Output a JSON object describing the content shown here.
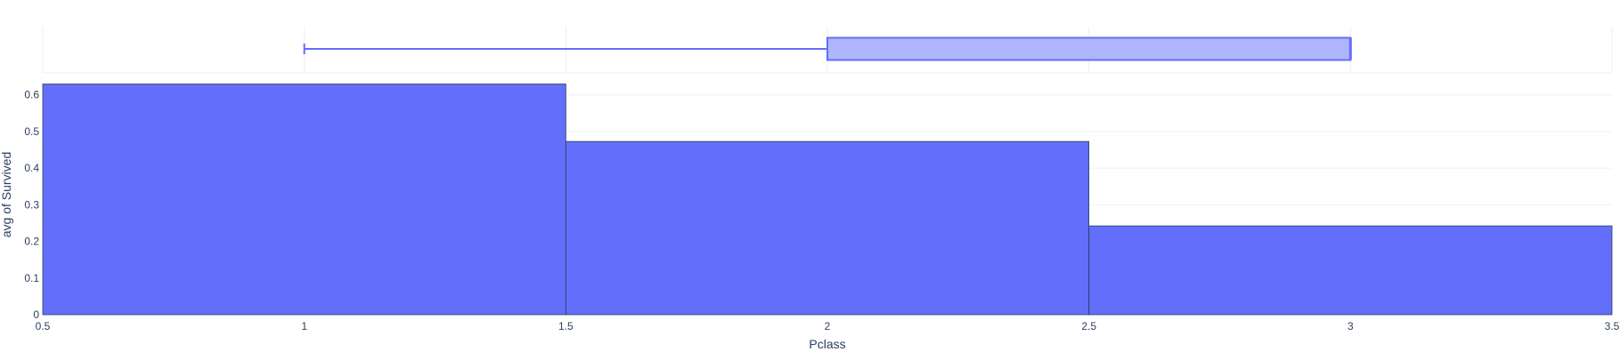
{
  "chart_data": {
    "type": "bar",
    "xlabel": "Pclass",
    "ylabel": "avg of Survived",
    "xlim": [
      0.5,
      3.5
    ],
    "ylim": [
      0,
      0.66
    ],
    "x_ticks": [
      "0.5",
      "1",
      "1.5",
      "2",
      "2.5",
      "3",
      "3.5"
    ],
    "y_ticks": [
      "0",
      "0.1",
      "0.2",
      "0.3",
      "0.4",
      "0.5",
      "0.6"
    ],
    "categories": [
      1,
      2,
      3
    ],
    "bins": [
      {
        "start": 0.5,
        "end": 1.5,
        "value": 0.6296
      },
      {
        "start": 1.5,
        "end": 2.5,
        "value": 0.4728
      },
      {
        "start": 2.5,
        "end": 3.5,
        "value": 0.2424
      }
    ],
    "marginal_box": {
      "min": 1,
      "q1": 2,
      "median": 3,
      "q3": 3,
      "max": 3
    },
    "grid": true,
    "colors": {
      "bar_fill": "#636efa",
      "bar_edge": "#2a3f5f",
      "box_fill": "#b0b6fc",
      "box_line": "#636efa",
      "grid": "#ebf0f8",
      "text": "#2a3f5f"
    }
  }
}
